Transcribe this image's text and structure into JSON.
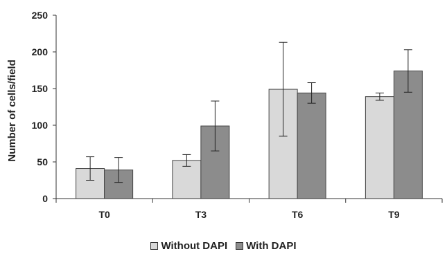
{
  "chart_data": {
    "type": "bar",
    "categories": [
      "T0",
      "T3",
      "T6",
      "T9"
    ],
    "series": [
      {
        "name": "Without DAPI",
        "color": "#d9d9d9",
        "values": [
          41,
          52,
          149,
          139
        ],
        "error": [
          16,
          8,
          64,
          5
        ]
      },
      {
        "name": "With DAPI",
        "color": "#8c8c8c",
        "values": [
          39,
          99,
          144,
          174
        ],
        "error": [
          17,
          34,
          14,
          29
        ]
      }
    ],
    "xlabel": "",
    "ylabel": "Number of cells/field",
    "ylim": [
      0,
      250
    ],
    "yticks": [
      "0",
      "50",
      "100",
      "150",
      "200",
      "250"
    ],
    "grid": false,
    "legend_position": "bottom"
  }
}
